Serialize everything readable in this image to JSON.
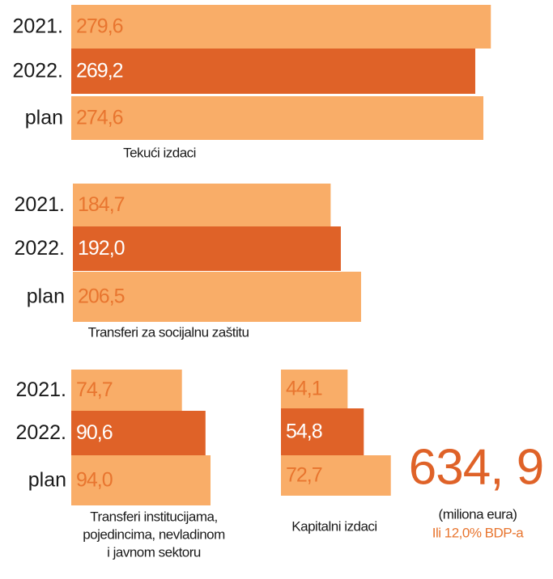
{
  "chart_data": [
    {
      "type": "bar",
      "orientation": "horizontal",
      "categories": [
        "2021.",
        "2022.",
        "plan"
      ],
      "values": [
        279.6,
        269.2,
        274.6
      ],
      "value_labels": [
        "279,6",
        "269,2",
        "274,6"
      ],
      "colors": [
        "#f9ad68",
        "#df6228",
        "#f9ad68"
      ],
      "label_colors": [
        "#e8752f",
        "#ffffff",
        "#e8752f"
      ],
      "xlim": [
        0,
        280
      ],
      "xlabel": [
        "Tekući izdaci"
      ]
    },
    {
      "type": "bar",
      "orientation": "horizontal",
      "categories": [
        "2021.",
        "2022.",
        "plan"
      ],
      "values": [
        184.7,
        192.0,
        206.5
      ],
      "value_labels": [
        "184,7",
        "192,0",
        "206,5"
      ],
      "colors": [
        "#f9ad68",
        "#df6228",
        "#f9ad68"
      ],
      "label_colors": [
        "#e8752f",
        "#ffffff",
        "#e8752f"
      ],
      "xlim": [
        0,
        210
      ],
      "xlabel": [
        "Transferi za socijalnu zaštitu"
      ]
    },
    {
      "type": "bar",
      "orientation": "horizontal",
      "categories": [
        "2021.",
        "2022.",
        "plan"
      ],
      "values": [
        74.7,
        90.6,
        94.0
      ],
      "value_labels": [
        "74,7",
        "90,6",
        "94,0"
      ],
      "colors": [
        "#f9ad68",
        "#df6228",
        "#f9ad68"
      ],
      "label_colors": [
        "#e8752f",
        "#ffffff",
        "#e8752f"
      ],
      "xlim": [
        0,
        100
      ],
      "xlabel": [
        "Transferi institucijama,",
        "pojedincima, nevladinom",
        "i javnom sektoru"
      ]
    },
    {
      "type": "bar",
      "orientation": "horizontal",
      "categories": [
        null,
        null,
        null
      ],
      "values": [
        44.1,
        54.8,
        72.7
      ],
      "value_labels": [
        "44,1",
        "54,8",
        "72,7"
      ],
      "colors": [
        "#f9ad68",
        "#df6228",
        "#f9ad68"
      ],
      "label_colors": [
        "#e8752f",
        "#ffffff",
        "#e8752f"
      ],
      "xlim": [
        0,
        75
      ],
      "xlabel": [
        "Kapitalni izdaci"
      ]
    }
  ],
  "summary": {
    "total": "634, 9",
    "unit": "(miliona eura)",
    "note": "Ili 12,0% BDP-a"
  }
}
